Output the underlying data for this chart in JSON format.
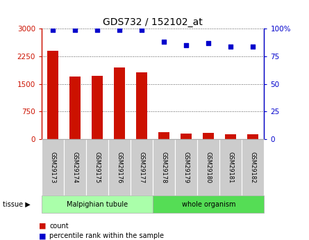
{
  "title": "GDS732 / 152102_at",
  "samples": [
    "GSM29173",
    "GSM29174",
    "GSM29175",
    "GSM29176",
    "GSM29177",
    "GSM29178",
    "GSM29179",
    "GSM29180",
    "GSM29181",
    "GSM29182"
  ],
  "counts": [
    2400,
    1700,
    1720,
    1950,
    1820,
    200,
    150,
    170,
    130,
    140
  ],
  "percentiles": [
    99,
    99,
    99,
    99,
    99,
    88,
    85,
    87,
    84,
    84
  ],
  "tissue_groups": [
    {
      "label": "Malpighian tubule",
      "start": 0,
      "end": 5,
      "color": "#aaffaa"
    },
    {
      "label": "whole organism",
      "start": 5,
      "end": 10,
      "color": "#55dd55"
    }
  ],
  "bar_color": "#cc1100",
  "dot_color": "#0000cc",
  "left_axis_color": "#cc1100",
  "right_axis_color": "#0000cc",
  "ylim_left": [
    0,
    3000
  ],
  "ylim_right": [
    0,
    100
  ],
  "yticks_left": [
    0,
    750,
    1500,
    2250,
    3000
  ],
  "yticks_right": [
    0,
    25,
    50,
    75,
    100
  ],
  "ytick_labels_left": [
    "0",
    "750",
    "1500",
    "2250",
    "3000"
  ],
  "ytick_labels_right": [
    "0",
    "25",
    "50",
    "75",
    "100%"
  ],
  "grid_color": "#555555",
  "bg_color": "#ffffff",
  "tissue_label": "tissue",
  "legend_count_label": "count",
  "legend_pct_label": "percentile rank within the sample",
  "bar_width": 0.5,
  "sample_box_color": "#cccccc",
  "border_color": "#aaaaaa"
}
